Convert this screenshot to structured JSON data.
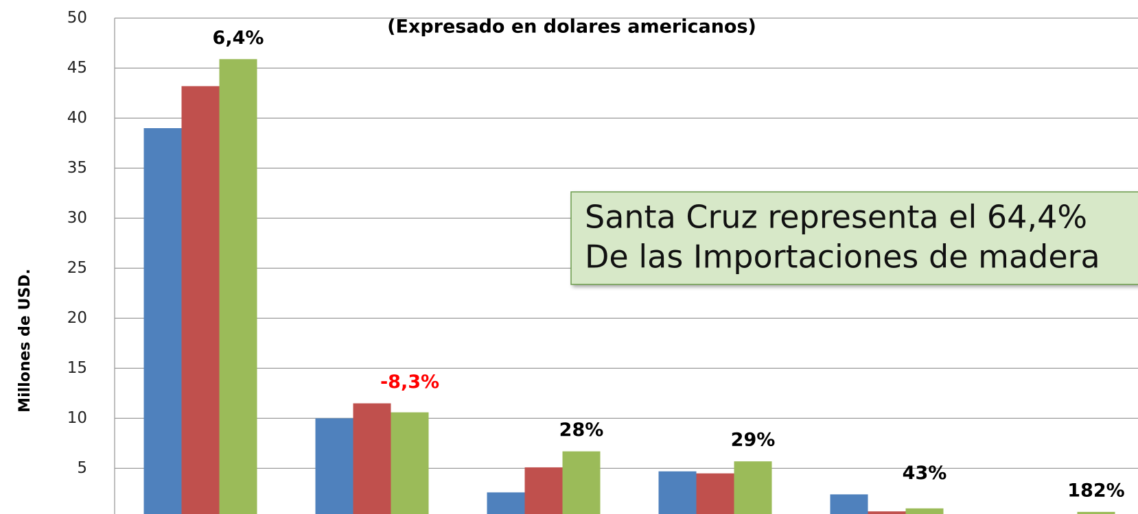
{
  "chart_data": {
    "type": "bar",
    "subtitle": "(Expresado en dolares americanos)",
    "ylabel": "Millones de USD.",
    "categories": [
      null,
      null,
      null,
      null,
      null,
      null
    ],
    "series": [
      {
        "color": "#4f81bd",
        "values": [
          39,
          10,
          2.6,
          4.7,
          2.4,
          0
        ]
      },
      {
        "color": "#c0504d",
        "values": [
          43.2,
          11.5,
          5.1,
          4.5,
          0.7,
          0
        ]
      },
      {
        "color": "#9bbb59",
        "values": [
          45.9,
          10.6,
          6.7,
          5.7,
          1.0,
          0.65
        ]
      }
    ],
    "value_labels": [
      "6,4%",
      "-8,3%",
      "28%",
      "29%",
      "43%",
      "182%"
    ],
    "value_label_colors": [
      "#000000",
      "#ff0000",
      "#000000",
      "#000000",
      "#000000",
      "#000000"
    ],
    "ylim": [
      0,
      50
    ],
    "yticks": [
      5,
      10,
      15,
      20,
      25,
      30,
      35,
      40,
      45,
      50
    ],
    "grid": true,
    "annotation": [
      "Santa Cruz representa el 64,4%",
      "De las Importaciones de madera"
    ]
  }
}
